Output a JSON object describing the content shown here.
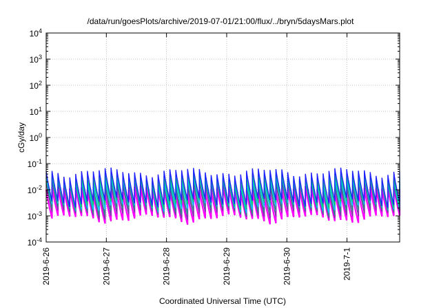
{
  "chart_data": {
    "type": "line",
    "title": "/data/run/goesPlots/archive/2019-07-01/21:00/flux/../bryn/5daysMars.plot",
    "xlabel": "Coordinated Universal Time (UTC)",
    "ylabel": "cGy/day",
    "yscale": "log",
    "ylim": [
      0.0001,
      10000
    ],
    "yticks": [
      {
        "value": 0.0001,
        "base": "10",
        "exp": "-4"
      },
      {
        "value": 0.001,
        "base": "10",
        "exp": "-3"
      },
      {
        "value": 0.01,
        "base": "10",
        "exp": "-2"
      },
      {
        "value": 0.1,
        "base": "10",
        "exp": "-1"
      },
      {
        "value": 1,
        "base": "10",
        "exp": "0"
      },
      {
        "value": 10,
        "base": "10",
        "exp": "1"
      },
      {
        "value": 100,
        "base": "10",
        "exp": "2"
      },
      {
        "value": 1000,
        "base": "10",
        "exp": "3"
      },
      {
        "value": 10000,
        "base": "10",
        "exp": "4"
      }
    ],
    "xlim": [
      "2019-06-26 00:00",
      "2019-07-01 21:00"
    ],
    "xticks": [
      "2019-6-26",
      "2019-6-27",
      "2019-6-28",
      "2019-6-29",
      "2019-6-30",
      "2019-7-1"
    ],
    "grid": true,
    "cycle_hours": 2.35,
    "series": [
      {
        "color": "#ff00ff",
        "low": 0.0008,
        "high": 0.01
      },
      {
        "color": "#7a3aa8",
        "low": 0.0012,
        "high": 0.018
      },
      {
        "color": "#2a8a8a",
        "low": 0.0016,
        "high": 0.022
      },
      {
        "color": "#00c0ff",
        "low": 0.0022,
        "high": 0.028
      },
      {
        "color": "#00d070",
        "low": 0.0028,
        "high": 0.036
      },
      {
        "color": "#2020ff",
        "low": 0.0035,
        "high": 0.05
      }
    ]
  }
}
